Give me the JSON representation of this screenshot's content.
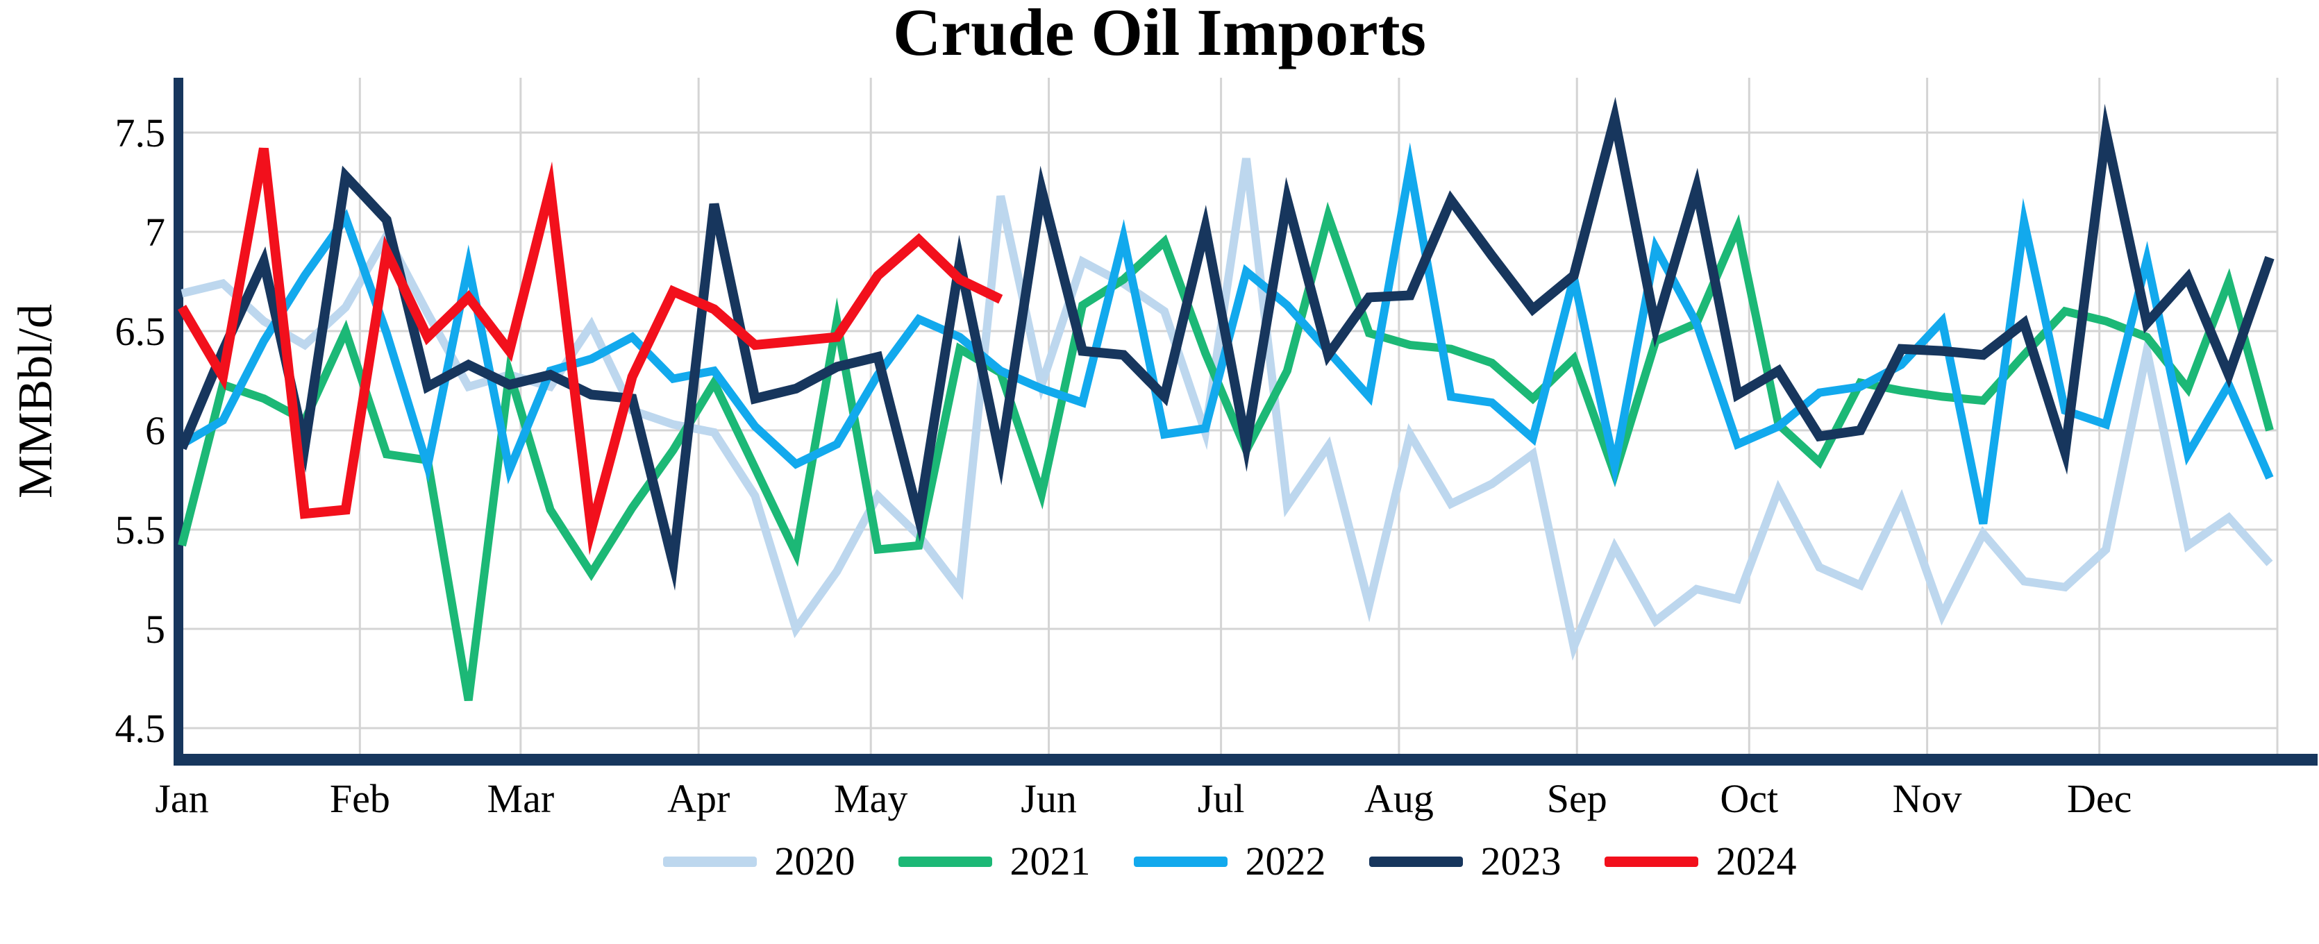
{
  "title": "Crude Oil Imports",
  "y_axis": {
    "label": "MMBbl/d",
    "tick_labels": [
      "4.5",
      "5",
      "5.5",
      "6",
      "6.5",
      "7",
      "7.5"
    ],
    "tick_values": [
      4.5,
      5,
      5.5,
      6,
      6.5,
      7,
      7.5
    ]
  },
  "x_axis": {
    "labels": [
      "Jan",
      "Feb",
      "Mar",
      "Apr",
      "May",
      "Jun",
      "Jul",
      "Aug",
      "Sep",
      "Oct",
      "Nov",
      "Dec"
    ]
  },
  "colors": {
    "axis": "#17365D",
    "grid": "#D4D4D4",
    "text": "#000000"
  },
  "chart_data": {
    "type": "line",
    "title": "Crude Oil Imports",
    "xlabel": "",
    "ylabel": "MMBbl/d",
    "x_unit": "week-of-year (weekly data, Jan through Dec)",
    "ylim": [
      4.36,
      7.78
    ],
    "grid": "on",
    "legend_position": "bottom-center",
    "series": [
      {
        "name": "2020",
        "color": "#BDD7EE",
        "values": [
          6.69,
          6.74,
          6.55,
          6.43,
          6.62,
          6.98,
          6.59,
          6.22,
          6.28,
          6.22,
          6.53,
          6.1,
          6.03,
          5.99,
          5.67,
          5.0,
          5.29,
          5.67,
          5.47,
          5.2,
          7.18,
          6.23,
          6.85,
          6.74,
          6.6,
          5.99,
          7.37,
          5.62,
          5.92,
          5.12,
          5.98,
          5.63,
          5.73,
          5.88,
          4.91,
          5.41,
          5.04,
          5.2,
          5.15,
          5.7,
          5.31,
          5.22,
          5.65,
          5.07,
          5.48,
          5.24,
          5.21,
          5.4,
          6.4,
          5.42,
          5.56,
          5.33
        ]
      },
      {
        "name": "2021",
        "color": "#1CB876",
        "values": [
          5.42,
          6.23,
          6.16,
          6.05,
          6.5,
          5.88,
          5.85,
          4.64,
          6.29,
          5.6,
          5.28,
          5.61,
          5.9,
          6.24,
          5.81,
          5.38,
          6.55,
          5.4,
          5.42,
          6.41,
          6.29,
          5.68,
          6.63,
          6.76,
          6.95,
          6.39,
          5.9,
          6.3,
          7.08,
          6.49,
          6.43,
          6.41,
          6.34,
          6.16,
          6.36,
          5.78,
          6.45,
          6.54,
          7.02,
          6.03,
          5.84,
          6.24,
          6.2,
          6.17,
          6.15,
          6.38,
          6.6,
          6.55,
          6.47,
          6.21,
          6.75,
          6.0
        ]
      },
      {
        "name": "2022",
        "color": "#12A9ED",
        "values": [
          5.93,
          6.05,
          6.45,
          6.78,
          7.07,
          6.49,
          5.82,
          6.83,
          5.8,
          6.3,
          6.36,
          6.47,
          6.26,
          6.3,
          6.02,
          5.83,
          5.93,
          6.28,
          6.56,
          6.47,
          6.3,
          6.21,
          6.14,
          6.97,
          5.98,
          6.01,
          6.8,
          6.63,
          6.4,
          6.17,
          7.33,
          6.17,
          6.14,
          5.96,
          6.77,
          5.82,
          6.92,
          6.54,
          5.93,
          6.02,
          6.19,
          6.22,
          6.33,
          6.55,
          5.53,
          7.05,
          6.1,
          6.03,
          6.86,
          5.88,
          6.23,
          5.76
        ]
      },
      {
        "name": "2023",
        "color": "#17365D",
        "values": [
          5.91,
          6.4,
          6.85,
          5.92,
          7.28,
          7.06,
          6.22,
          6.33,
          6.23,
          6.28,
          6.18,
          6.16,
          5.33,
          7.14,
          6.16,
          6.21,
          6.32,
          6.37,
          5.56,
          6.85,
          5.86,
          7.21,
          6.4,
          6.38,
          6.17,
          7.02,
          5.93,
          7.16,
          6.38,
          6.67,
          6.68,
          7.16,
          6.88,
          6.61,
          6.78,
          7.57,
          6.52,
          7.22,
          6.18,
          6.3,
          5.97,
          6.0,
          6.41,
          6.4,
          6.38,
          6.54,
          5.89,
          7.5,
          6.54,
          6.77,
          6.28,
          6.87
        ]
      },
      {
        "name": "2024",
        "color": "#F2101C",
        "values": [
          6.62,
          6.27,
          7.42,
          5.58,
          5.6,
          6.9,
          6.47,
          6.67,
          6.4,
          7.22,
          5.5,
          6.27,
          6.7,
          6.61,
          6.43,
          6.45,
          6.47,
          6.78,
          6.96,
          6.76,
          6.66
        ]
      }
    ]
  }
}
